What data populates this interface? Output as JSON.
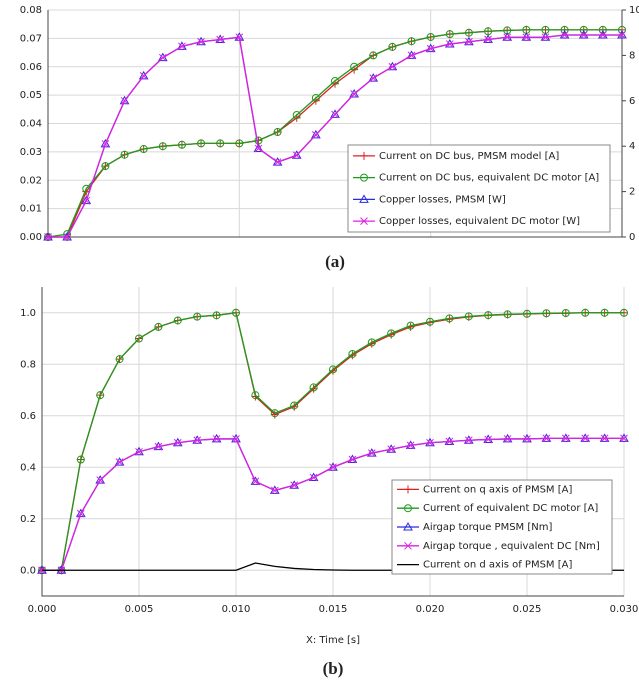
{
  "chart_data": [
    {
      "type": "line",
      "caption": "(a)",
      "x": [
        0,
        0.001,
        0.002,
        0.003,
        0.004,
        0.005,
        0.006,
        0.007,
        0.008,
        0.009,
        0.01,
        0.011,
        0.012,
        0.013,
        0.014,
        0.015,
        0.016,
        0.017,
        0.018,
        0.019,
        0.02,
        0.021,
        0.022,
        0.023,
        0.024,
        0.025,
        0.026,
        0.027,
        0.028,
        0.029,
        0.03
      ],
      "xlim": [
        0,
        0.03
      ],
      "xticks": [
        0,
        0.01,
        0.02,
        0.03
      ],
      "show_xtick_labels": false,
      "ylim": [
        0,
        0.08
      ],
      "yticks": [
        {
          "value": 0,
          "label": "0.00"
        },
        {
          "value": 0.01,
          "label": "0.01"
        },
        {
          "value": 0.02,
          "label": "0.02"
        },
        {
          "value": 0.03,
          "label": "0.03"
        },
        {
          "value": 0.04,
          "label": "0.04"
        },
        {
          "value": 0.05,
          "label": "0.05"
        },
        {
          "value": 0.06,
          "label": "0.06"
        },
        {
          "value": 0.07,
          "label": "0.07"
        },
        {
          "value": 0.08,
          "label": "0.08"
        }
      ],
      "y2lim": [
        0,
        10
      ],
      "y2ticks": [
        0,
        2,
        4,
        6,
        8,
        10
      ],
      "grid": true,
      "legend": "lower right",
      "series": [
        {
          "name": "Current on DC bus, PMSM model [A]",
          "color": "#e02020",
          "marker": "plus",
          "values": [
            0,
            0,
            0.016,
            0.025,
            0.029,
            0.031,
            0.032,
            0.0325,
            0.033,
            0.033,
            0.033,
            0.034,
            0.037,
            0.042,
            0.048,
            0.054,
            0.059,
            0.064,
            0.067,
            0.069,
            0.0705,
            0.0715,
            0.072,
            0.0725,
            0.0728,
            0.073,
            0.073,
            0.073,
            0.073,
            0.073,
            0.073
          ]
        },
        {
          "name": "Current on DC bus, equivalent DC motor [A]",
          "color": "#1f9a1f",
          "marker": "circle",
          "values": [
            0,
            0.001,
            0.017,
            0.025,
            0.029,
            0.031,
            0.032,
            0.0325,
            0.033,
            0.033,
            0.033,
            0.034,
            0.037,
            0.043,
            0.049,
            0.055,
            0.06,
            0.064,
            0.067,
            0.069,
            0.0705,
            0.0715,
            0.072,
            0.0725,
            0.0728,
            0.073,
            0.073,
            0.073,
            0.073,
            0.073,
            0.073
          ]
        },
        {
          "name": "Copper losses, PMSM [W]",
          "color": "#2a2ae0",
          "marker": "triangle",
          "axis": "y2",
          "values": [
            0,
            0,
            1.6,
            4.1,
            6.0,
            7.1,
            7.9,
            8.4,
            8.6,
            8.7,
            8.8,
            3.9,
            3.3,
            3.6,
            4.5,
            5.4,
            6.3,
            7.0,
            7.5,
            8.0,
            8.3,
            8.5,
            8.6,
            8.7,
            8.8,
            8.8,
            8.8,
            8.9,
            8.9,
            8.9,
            8.9
          ]
        },
        {
          "name": "Copper losses, equivalent DC motor [W]",
          "color": "#e020e0",
          "marker": "cross",
          "axis": "y2",
          "values": [
            0,
            0,
            1.6,
            4.1,
            6.0,
            7.1,
            7.9,
            8.4,
            8.6,
            8.7,
            8.8,
            3.9,
            3.3,
            3.6,
            4.5,
            5.4,
            6.3,
            7.0,
            7.5,
            8.0,
            8.3,
            8.5,
            8.6,
            8.7,
            8.8,
            8.8,
            8.8,
            8.9,
            8.9,
            8.9,
            8.9
          ]
        }
      ]
    },
    {
      "type": "line",
      "caption": "(b)",
      "xlabel": "X: Time [s]",
      "x": [
        0,
        0.001,
        0.002,
        0.003,
        0.004,
        0.005,
        0.006,
        0.007,
        0.008,
        0.009,
        0.01,
        0.011,
        0.012,
        0.013,
        0.014,
        0.015,
        0.016,
        0.017,
        0.018,
        0.019,
        0.02,
        0.021,
        0.022,
        0.023,
        0.024,
        0.025,
        0.026,
        0.027,
        0.028,
        0.029,
        0.03
      ],
      "xlim": [
        0,
        0.03
      ],
      "xticks": [
        {
          "value": 0,
          "label": "0.000"
        },
        {
          "value": 0.005,
          "label": "0.005"
        },
        {
          "value": 0.01,
          "label": "0.010"
        },
        {
          "value": 0.015,
          "label": "0.015"
        },
        {
          "value": 0.02,
          "label": "0.020"
        },
        {
          "value": 0.025,
          "label": "0.025"
        },
        {
          "value": 0.03,
          "label": "0.030"
        }
      ],
      "ylim": [
        -0.1,
        1.1
      ],
      "yticks": [
        {
          "value": 0,
          "label": "0.0"
        },
        {
          "value": 0.2,
          "label": "0.2"
        },
        {
          "value": 0.4,
          "label": "0.4"
        },
        {
          "value": 0.6,
          "label": "0.6"
        },
        {
          "value": 0.8,
          "label": "0.8"
        },
        {
          "value": 1,
          "label": "1.0"
        }
      ],
      "grid": true,
      "legend": "lower right",
      "series": [
        {
          "name": "Current on q axis of PMSM [A]",
          "color": "#e02020",
          "marker": "plus",
          "values": [
            0,
            0,
            0.43,
            0.68,
            0.82,
            0.9,
            0.945,
            0.97,
            0.985,
            0.99,
            1.0,
            0.675,
            0.605,
            0.635,
            0.705,
            0.775,
            0.835,
            0.88,
            0.915,
            0.945,
            0.962,
            0.975,
            0.984,
            0.99,
            0.993,
            0.995,
            0.997,
            0.998,
            1.0,
            1.0,
            1.0
          ]
        },
        {
          "name": "Current of equivalent DC motor [A]",
          "color": "#1f9a1f",
          "marker": "circle",
          "values": [
            0,
            0,
            0.43,
            0.68,
            0.82,
            0.9,
            0.945,
            0.97,
            0.985,
            0.99,
            1.0,
            0.68,
            0.61,
            0.64,
            0.71,
            0.78,
            0.84,
            0.885,
            0.92,
            0.95,
            0.965,
            0.978,
            0.986,
            0.991,
            0.994,
            0.996,
            0.998,
            0.999,
            1.0,
            1.0,
            1.0
          ]
        },
        {
          "name": "Airgap torque PMSM [Nm]",
          "color": "#2a2ae0",
          "marker": "triangle",
          "values": [
            0,
            0,
            0.22,
            0.35,
            0.42,
            0.46,
            0.48,
            0.495,
            0.505,
            0.51,
            0.51,
            0.345,
            0.31,
            0.33,
            0.36,
            0.4,
            0.43,
            0.455,
            0.47,
            0.485,
            0.495,
            0.5,
            0.505,
            0.508,
            0.51,
            0.51,
            0.512,
            0.512,
            0.512,
            0.512,
            0.512
          ]
        },
        {
          "name": "Airgap torque , equivalent DC [Nm]",
          "color": "#e020e0",
          "marker": "cross",
          "values": [
            0,
            0,
            0.22,
            0.35,
            0.42,
            0.46,
            0.48,
            0.495,
            0.505,
            0.51,
            0.51,
            0.345,
            0.31,
            0.33,
            0.36,
            0.4,
            0.43,
            0.455,
            0.47,
            0.485,
            0.495,
            0.5,
            0.505,
            0.508,
            0.51,
            0.51,
            0.512,
            0.512,
            0.512,
            0.512,
            0.512
          ]
        },
        {
          "name": "Current on d axis of PMSM [A]",
          "color": "#000000",
          "marker": "none",
          "values": [
            0,
            0,
            0,
            0,
            0,
            0,
            0,
            0,
            0,
            0,
            0,
            0.028,
            0.015,
            0.007,
            0.003,
            0.001,
            0,
            0,
            0,
            0,
            0,
            0,
            0,
            0,
            0,
            0,
            0,
            0,
            0,
            0,
            0
          ]
        }
      ]
    }
  ]
}
